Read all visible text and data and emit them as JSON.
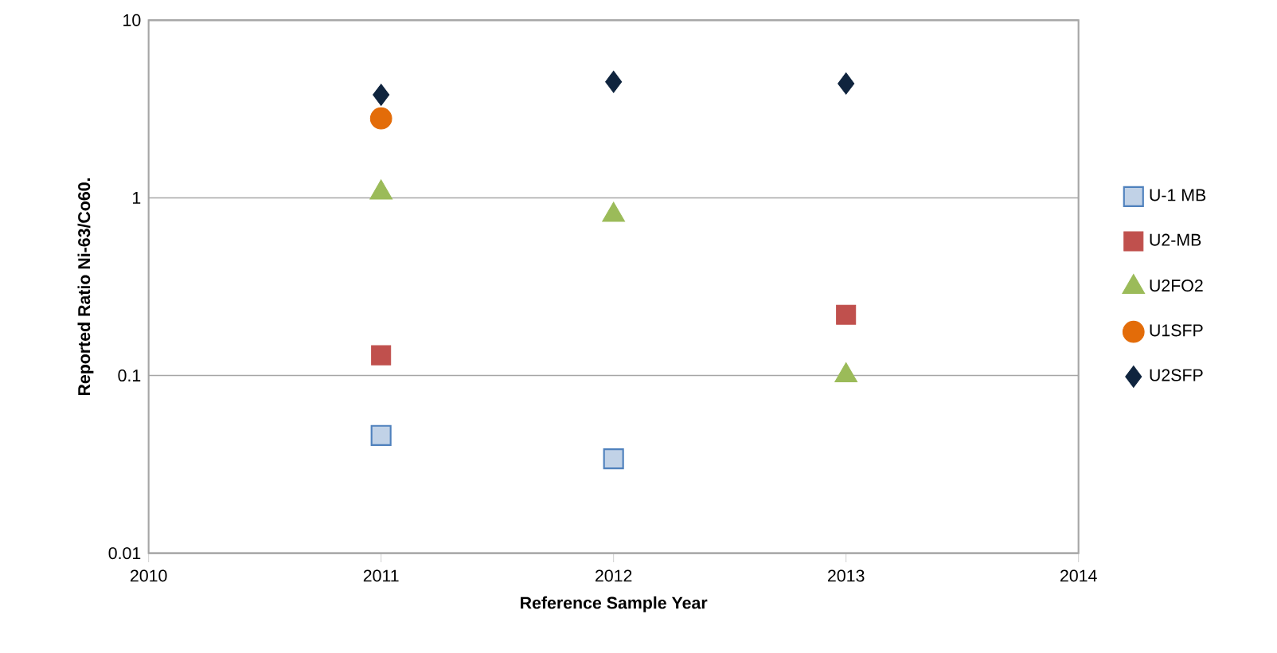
{
  "chart_data": {
    "type": "scatter",
    "xlabel": "Reference Sample Year",
    "ylabel": "Reported Ratio Ni-63/Co60.",
    "x": [
      2011,
      2012,
      2013
    ],
    "series": [
      {
        "name": "U-1 MB",
        "color": "#4f81bd",
        "marker": "square",
        "values": [
          0.046,
          0.034,
          null
        ]
      },
      {
        "name": "U2-MB",
        "color": "#c0504d",
        "marker": "square",
        "values": [
          0.13,
          null,
          0.22
        ]
      },
      {
        "name": "U2FO2",
        "color": "#9bbb59",
        "marker": "triangle",
        "values": [
          1.07,
          0.8,
          0.1
        ]
      },
      {
        "name": "U1SFP",
        "color": "#e36c09",
        "marker": "circle",
        "values": [
          2.8,
          null,
          null
        ]
      },
      {
        "name": "U2SFP",
        "color": "#0f243e",
        "marker": "diamond",
        "values": [
          3.8,
          4.5,
          4.4
        ]
      }
    ],
    "log": true,
    "xlim": [
      2010,
      2014
    ],
    "ylim": [
      0.01,
      10
    ],
    "xticks": [
      2010,
      2011,
      2012,
      2013,
      2014
    ],
    "yticks": [
      0.01,
      0.1,
      1,
      10
    ],
    "grid": "y",
    "legend": "right"
  }
}
